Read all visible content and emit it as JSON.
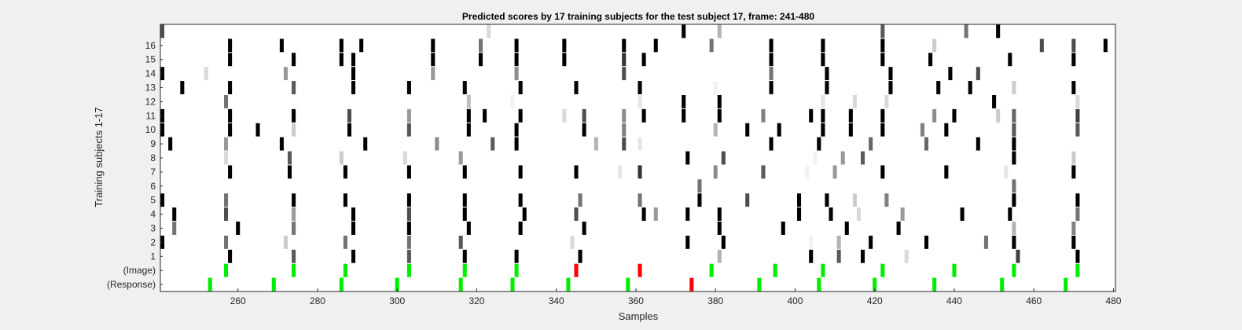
{
  "chart_data": {
    "type": "heatmap",
    "title": "Predicted scores by 17 training subjects for the test subject 17, frame: 241-480",
    "xlabel": "Samples",
    "ylabel": "Training subjects 1-17",
    "xlim": [
      241,
      480
    ],
    "x_ticks": [
      260,
      280,
      300,
      320,
      340,
      360,
      380,
      400,
      420,
      440,
      460,
      480
    ],
    "row_labels": [
      "(Response)",
      "(Image)",
      "1",
      "2",
      "3",
      "4",
      "5",
      "6",
      "7",
      "8",
      "9",
      "10",
      "11",
      "12",
      "13",
      "14",
      "15",
      "16",
      ""
    ],
    "colors": {
      "background": "#ffffff",
      "green": "#00ee00",
      "red": "#ff0000",
      "figure": "#f0f0f0"
    },
    "rows": [
      {
        "label": "(Response)",
        "marks": [
          [
            253,
            "green"
          ],
          [
            269,
            "green"
          ],
          [
            286,
            "green"
          ],
          [
            300,
            "green"
          ],
          [
            316,
            "green"
          ],
          [
            329,
            "green"
          ],
          [
            343,
            "green"
          ],
          [
            358,
            "green"
          ],
          [
            374,
            "red"
          ],
          [
            391,
            "green"
          ],
          [
            406,
            "green"
          ],
          [
            420,
            "green"
          ],
          [
            435,
            "green"
          ],
          [
            452,
            "green"
          ],
          [
            468,
            "green"
          ]
        ]
      },
      {
        "label": "(Image)",
        "marks": [
          [
            257,
            "green"
          ],
          [
            274,
            "green"
          ],
          [
            287,
            "green"
          ],
          [
            303,
            "green"
          ],
          [
            317,
            "green"
          ],
          [
            330,
            "green"
          ],
          [
            345,
            "red"
          ],
          [
            361,
            "red"
          ],
          [
            379,
            "green"
          ],
          [
            395,
            "green"
          ],
          [
            407,
            "green"
          ],
          [
            422,
            "green"
          ],
          [
            440,
            "green"
          ],
          [
            455,
            "green"
          ],
          [
            471,
            "green"
          ]
        ]
      },
      {
        "label": "1",
        "marks": [
          [
            258,
            0
          ],
          [
            274,
            0.35
          ],
          [
            289,
            0
          ],
          [
            303,
            0.35
          ],
          [
            317,
            0
          ],
          [
            330,
            0
          ],
          [
            346,
            0
          ],
          [
            381,
            0.7
          ],
          [
            404,
            0
          ],
          [
            411,
            0.35
          ],
          [
            417,
            0
          ],
          [
            428,
            0.85
          ],
          [
            456,
            0.25
          ],
          [
            471,
            0
          ]
        ]
      },
      {
        "label": "2",
        "marks": [
          [
            241,
            0
          ],
          [
            257,
            0.45
          ],
          [
            272,
            0.8
          ],
          [
            287,
            0.45
          ],
          [
            303,
            0.45
          ],
          [
            316,
            0.35
          ],
          [
            344,
            0.85
          ],
          [
            373,
            0
          ],
          [
            382,
            0
          ],
          [
            404,
            0.95
          ],
          [
            411,
            0.7
          ],
          [
            419,
            0
          ],
          [
            433,
            0
          ],
          [
            448,
            0.45
          ],
          [
            455,
            0
          ],
          [
            470,
            0
          ]
        ]
      },
      {
        "label": "3",
        "marks": [
          [
            244,
            0.45
          ],
          [
            260,
            0
          ],
          [
            274,
            0.45
          ],
          [
            289,
            0
          ],
          [
            303,
            0
          ],
          [
            318,
            0
          ],
          [
            331,
            0
          ],
          [
            347,
            0
          ],
          [
            381,
            0
          ],
          [
            397,
            0
          ],
          [
            413,
            0
          ],
          [
            426,
            0
          ],
          [
            455,
            0.7
          ],
          [
            470,
            0.5
          ]
        ]
      },
      {
        "label": "4",
        "marks": [
          [
            244,
            0
          ],
          [
            257,
            0.3
          ],
          [
            274,
            0.6
          ],
          [
            289,
            0
          ],
          [
            303,
            0.3
          ],
          [
            317,
            0
          ],
          [
            332,
            0
          ],
          [
            345,
            0.3
          ],
          [
            362,
            0
          ],
          [
            365,
            0.6
          ],
          [
            373,
            0
          ],
          [
            381,
            0
          ],
          [
            401,
            0
          ],
          [
            409,
            0
          ],
          [
            416,
            0.85
          ],
          [
            427,
            0.6
          ],
          [
            442,
            0
          ],
          [
            454,
            0
          ],
          [
            471,
            0.45
          ]
        ]
      },
      {
        "label": "5",
        "marks": [
          [
            241,
            0
          ],
          [
            257,
            0.45
          ],
          [
            274,
            0
          ],
          [
            287,
            0
          ],
          [
            303,
            0
          ],
          [
            317,
            0
          ],
          [
            331,
            0
          ],
          [
            346,
            0.45
          ],
          [
            361,
            0.45
          ],
          [
            376,
            0
          ],
          [
            388,
            0.3
          ],
          [
            401,
            0
          ],
          [
            408,
            0
          ],
          [
            415,
            0.8
          ],
          [
            423,
            0.5
          ],
          [
            455,
            0
          ],
          [
            471,
            0
          ]
        ]
      },
      {
        "label": "6",
        "marks": [
          [
            376,
            0.45
          ],
          [
            455,
            0.45
          ]
        ]
      },
      {
        "label": "7",
        "marks": [
          [
            258,
            0
          ],
          [
            273,
            0
          ],
          [
            287,
            0
          ],
          [
            303,
            0
          ],
          [
            317,
            0
          ],
          [
            331,
            0
          ],
          [
            345,
            0
          ],
          [
            356,
            0.9
          ],
          [
            361,
            0.2
          ],
          [
            380,
            0.55
          ],
          [
            392,
            0.35
          ],
          [
            403,
            0.95
          ],
          [
            410,
            0.6
          ],
          [
            422,
            0
          ],
          [
            438,
            0
          ],
          [
            453,
            0.9
          ],
          [
            470,
            0
          ]
        ]
      },
      {
        "label": "8",
        "marks": [
          [
            257,
            0.85
          ],
          [
            273,
            0.35
          ],
          [
            286,
            0.8
          ],
          [
            302,
            0.85
          ],
          [
            316,
            0.6
          ],
          [
            373,
            0
          ],
          [
            382,
            0.3
          ],
          [
            405,
            0.95
          ],
          [
            412,
            0.6
          ],
          [
            417,
            0.35
          ],
          [
            455,
            0
          ],
          [
            470,
            0.8
          ]
        ]
      },
      {
        "label": "9",
        "marks": [
          [
            243,
            0
          ],
          [
            257,
            0.6
          ],
          [
            271,
            0
          ],
          [
            292,
            0
          ],
          [
            310,
            0.55
          ],
          [
            324,
            0.35
          ],
          [
            330,
            0
          ],
          [
            350,
            0.7
          ],
          [
            357,
            0.3
          ],
          [
            361,
            0.9
          ],
          [
            394,
            0
          ],
          [
            406,
            0
          ],
          [
            419,
            0.4
          ],
          [
            433,
            0.4
          ],
          [
            446,
            0
          ],
          [
            455,
            0
          ]
        ]
      },
      {
        "label": "10",
        "marks": [
          [
            241,
            0
          ],
          [
            258,
            0
          ],
          [
            265,
            0
          ],
          [
            274,
            0.8
          ],
          [
            288,
            0
          ],
          [
            303,
            0.35
          ],
          [
            318,
            0
          ],
          [
            330,
            0
          ],
          [
            347,
            0
          ],
          [
            357,
            0.5
          ],
          [
            380,
            0.7
          ],
          [
            388,
            0
          ],
          [
            396,
            0
          ],
          [
            407,
            0
          ],
          [
            414,
            0
          ],
          [
            422,
            0
          ],
          [
            432,
            0.5
          ],
          [
            438,
            0
          ],
          [
            455,
            0.35
          ],
          [
            471,
            0.35
          ]
        ]
      },
      {
        "label": "11",
        "marks": [
          [
            241,
            0
          ],
          [
            258,
            0
          ],
          [
            274,
            0
          ],
          [
            288,
            0.3
          ],
          [
            303,
            0.6
          ],
          [
            318,
            0
          ],
          [
            322,
            0
          ],
          [
            331,
            0
          ],
          [
            342,
            0.85
          ],
          [
            347,
            0.3
          ],
          [
            357,
            0.55
          ],
          [
            362,
            0
          ],
          [
            372,
            0
          ],
          [
            381,
            0
          ],
          [
            392,
            0.5
          ],
          [
            404,
            0
          ],
          [
            407,
            0
          ],
          [
            414,
            0
          ],
          [
            422,
            0
          ],
          [
            435,
            0.55
          ],
          [
            440,
            0
          ],
          [
            451,
            0.8
          ],
          [
            455,
            0.4
          ],
          [
            471,
            0.25
          ]
        ]
      },
      {
        "label": "12",
        "marks": [
          [
            257,
            0.45
          ],
          [
            318,
            0.75
          ],
          [
            329,
            0.95
          ],
          [
            361,
            0.9
          ],
          [
            372,
            0
          ],
          [
            381,
            0
          ],
          [
            407,
            0.9
          ],
          [
            415,
            0.85
          ],
          [
            423,
            0.85
          ],
          [
            450,
            0
          ],
          [
            471,
            0.85
          ]
        ]
      },
      {
        "label": "13",
        "marks": [
          [
            246,
            0
          ],
          [
            258,
            0
          ],
          [
            274,
            0.35
          ],
          [
            289,
            0
          ],
          [
            303,
            0
          ],
          [
            317,
            0
          ],
          [
            331,
            0
          ],
          [
            345,
            0
          ],
          [
            361,
            0
          ],
          [
            380,
            0.95
          ],
          [
            394,
            0
          ],
          [
            408,
            0
          ],
          [
            424,
            0
          ],
          [
            436,
            0
          ],
          [
            444,
            0
          ],
          [
            455,
            0.8
          ],
          [
            470,
            0
          ]
        ]
      },
      {
        "label": "14",
        "marks": [
          [
            241,
            0
          ],
          [
            252,
            0.85
          ],
          [
            272,
            0.6
          ],
          [
            289,
            0
          ],
          [
            309,
            0.6
          ],
          [
            330,
            0.55
          ],
          [
            357,
            0.3
          ],
          [
            394,
            0.45
          ],
          [
            408,
            0
          ],
          [
            424,
            0
          ],
          [
            439,
            0
          ],
          [
            446,
            0.3
          ]
        ]
      },
      {
        "label": "15",
        "marks": [
          [
            258,
            0
          ],
          [
            274,
            0
          ],
          [
            286,
            0
          ],
          [
            289,
            0
          ],
          [
            309,
            0
          ],
          [
            321,
            0
          ],
          [
            330,
            0
          ],
          [
            342,
            0
          ],
          [
            357,
            0.2
          ],
          [
            362,
            0
          ],
          [
            394,
            0
          ],
          [
            407,
            0
          ],
          [
            422,
            0
          ],
          [
            434,
            0
          ],
          [
            454,
            0
          ],
          [
            470,
            0
          ]
        ]
      },
      {
        "label": "16",
        "marks": [
          [
            258,
            0
          ],
          [
            271,
            0
          ],
          [
            286,
            0
          ],
          [
            291,
            0
          ],
          [
            309,
            0
          ],
          [
            321,
            0.45
          ],
          [
            330,
            0
          ],
          [
            342,
            0
          ],
          [
            357,
            0
          ],
          [
            365,
            0
          ],
          [
            379,
            0.45
          ],
          [
            394,
            0
          ],
          [
            407,
            0
          ],
          [
            422,
            0
          ],
          [
            435,
            0.8
          ],
          [
            462,
            0.3
          ],
          [
            470,
            0.3
          ],
          [
            478,
            0
          ]
        ]
      },
      {
        "label": "",
        "marks": [
          [
            241,
            0.3
          ],
          [
            323,
            0.85
          ],
          [
            372,
            0
          ],
          [
            381,
            0.7
          ],
          [
            422,
            0.35
          ],
          [
            443,
            0.45
          ],
          [
            451,
            0
          ]
        ]
      }
    ]
  }
}
